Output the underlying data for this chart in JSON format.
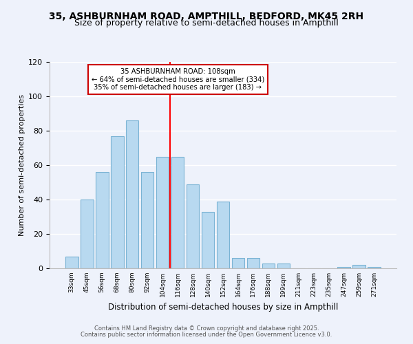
{
  "title": "35, ASHBURNHAM ROAD, AMPTHILL, BEDFORD, MK45 2RH",
  "subtitle": "Size of property relative to semi-detached houses in Ampthill",
  "xlabel": "Distribution of semi-detached houses by size in Ampthill",
  "ylabel": "Number of semi-detached properties",
  "bin_labels": [
    "33sqm",
    "45sqm",
    "56sqm",
    "68sqm",
    "80sqm",
    "92sqm",
    "104sqm",
    "116sqm",
    "128sqm",
    "140sqm",
    "152sqm",
    "164sqm",
    "176sqm",
    "188sqm",
    "199sqm",
    "211sqm",
    "223sqm",
    "235sqm",
    "247sqm",
    "259sqm",
    "271sqm"
  ],
  "bar_values": [
    7,
    40,
    56,
    77,
    86,
    56,
    65,
    65,
    49,
    33,
    39,
    6,
    6,
    3,
    3,
    0,
    0,
    0,
    1,
    2,
    1
  ],
  "bar_color": "#b8d9f0",
  "bar_edge_color": "#7ab3d4",
  "vline_x_index": 6,
  "vline_color": "red",
  "annotation_title": "35 ASHBURNHAM ROAD: 108sqm",
  "annotation_line1": "← 64% of semi-detached houses are smaller (334)",
  "annotation_line2": "35% of semi-detached houses are larger (183) →",
  "annotation_box_color": "#ffffff",
  "annotation_box_edge": "#cc0000",
  "ylim": [
    0,
    120
  ],
  "yticks": [
    0,
    20,
    40,
    60,
    80,
    100,
    120
  ],
  "footer1": "Contains HM Land Registry data © Crown copyright and database right 2025.",
  "footer2": "Contains public sector information licensed under the Open Government Licence v3.0.",
  "bg_color": "#eef2fb",
  "grid_color": "#ffffff",
  "title_fontsize": 10,
  "subtitle_fontsize": 9
}
